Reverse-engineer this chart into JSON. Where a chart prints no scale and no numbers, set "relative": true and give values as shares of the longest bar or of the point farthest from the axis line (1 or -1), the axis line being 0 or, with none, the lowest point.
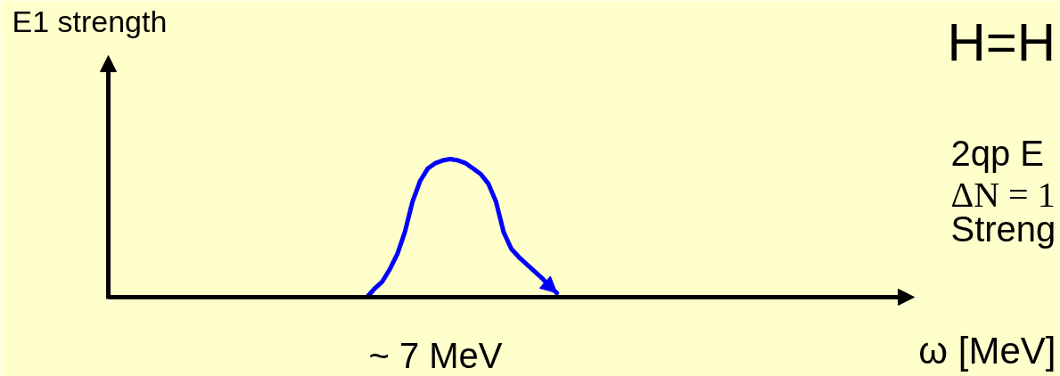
{
  "chart_data": {
    "type": "line",
    "relative": true,
    "xlabel": "ω [MeV]",
    "ylabel": "E1 strength",
    "annotations": [
      "H=H",
      "2qp E",
      "ΔN = 1",
      "Streng",
      "~ 7 MeV"
    ],
    "categories": [
      null,
      null,
      null,
      null,
      null,
      null,
      null,
      null,
      null,
      null,
      null,
      null,
      null,
      null,
      null,
      null,
      null,
      null,
      null,
      null,
      null,
      null,
      null,
      null,
      null,
      null,
      null,
      null,
      null,
      null,
      null,
      null,
      null,
      null,
      null,
      null,
      null,
      null,
      null,
      null,
      null,
      null,
      null,
      null,
      null,
      null,
      null,
      null,
      null,
      null,
      null,
      null,
      null,
      null,
      null,
      null,
      null,
      null,
      null,
      null,
      null,
      null,
      null,
      null,
      null,
      null,
      null,
      null,
      null,
      null,
      null,
      null,
      null,
      null,
      null,
      null,
      null,
      null,
      null,
      null,
      null,
      null,
      null,
      null,
      null,
      null,
      null,
      null,
      null,
      null,
      null,
      null,
      null,
      null,
      null,
      null,
      null,
      null,
      null,
      null,
      null,
      null,
      null,
      null,
      null,
      null,
      null
    ],
    "series": [
      {
        "color": "#0000ff",
        "values": [
          null,
          null,
          null,
          null,
          null,
          null,
          null,
          null,
          null,
          null,
          null,
          null,
          null,
          null,
          null,
          null,
          null,
          null,
          null,
          null,
          null,
          null,
          null,
          null,
          null,
          null,
          null,
          null,
          null,
          null,
          null,
          null,
          null,
          null,
          0,
          0.06,
          0.11,
          0.2,
          0.31,
          0.47,
          0.69,
          0.84,
          0.93,
          0.97,
          0.99,
          1,
          0.99,
          0.97,
          0.93,
          0.89,
          0.82,
          0.69,
          0.47,
          0.35,
          0.29,
          0.24,
          0.19,
          0.14,
          0.08,
          0.03,
          null,
          null,
          null,
          null,
          null,
          null,
          null,
          null,
          null,
          null,
          null,
          null,
          null,
          null,
          null,
          null,
          null,
          null,
          null,
          null,
          null,
          null,
          null,
          null,
          null,
          null,
          null,
          null,
          null,
          null,
          null,
          null,
          null,
          null,
          null,
          null,
          null,
          null,
          null,
          null,
          null,
          null,
          null,
          null,
          null,
          null,
          null
        ]
      }
    ]
  }
}
